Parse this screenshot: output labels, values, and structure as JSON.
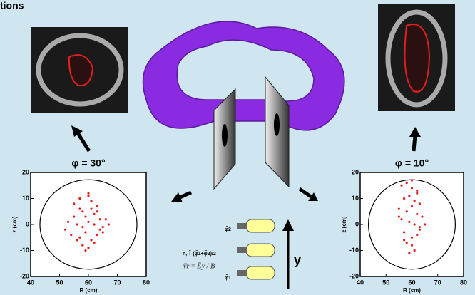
{
  "title": "tions",
  "panels": [
    {
      "label": "φ = 30°",
      "xlabel": "R (cm)",
      "ylabel": "z (cm)",
      "color": "#e02020",
      "xlim": [
        40,
        80
      ],
      "ylim": [
        -20,
        20
      ],
      "xticks": [
        40,
        50,
        60,
        70,
        80
      ],
      "yticks": [
        -20,
        -10,
        0,
        10,
        20
      ],
      "x": [
        55,
        57,
        58,
        59,
        60,
        61,
        62,
        63,
        64,
        56,
        58,
        60,
        62,
        64,
        66,
        54,
        57,
        59,
        61,
        63,
        65,
        52,
        55,
        58,
        60,
        62,
        60,
        59,
        61,
        57,
        63,
        65,
        67,
        53,
        56
      ],
      "y": [
        8,
        10,
        5,
        3,
        11,
        6,
        4,
        7,
        2,
        0,
        -1,
        1,
        0,
        -2,
        2,
        -4,
        -5,
        -3,
        -6,
        -4,
        -1,
        -2,
        3,
        -8,
        -9,
        -7,
        12,
        -10,
        9,
        6,
        5,
        -3,
        0,
        1,
        -6
      ]
    },
    {
      "label": "φ = 10°",
      "xlabel": "R (cm)",
      "ylabel": "z (cm)",
      "color": "#e02020",
      "xlim": [
        40,
        80
      ],
      "ylim": [
        -20,
        20
      ],
      "xticks": [
        40,
        50,
        60,
        70,
        80
      ],
      "yticks": [
        -20,
        -10,
        0,
        10,
        20
      ],
      "x": [
        56,
        58,
        60,
        62,
        57,
        59,
        61,
        63,
        55,
        58,
        60,
        62,
        64,
        56,
        59,
        61,
        63,
        57,
        60,
        62,
        58,
        60,
        61,
        59,
        57,
        63,
        55,
        65,
        60,
        62
      ],
      "y": [
        15,
        16,
        14,
        12,
        10,
        11,
        9,
        8,
        6,
        5,
        7,
        4,
        3,
        2,
        1,
        0,
        -2,
        -3,
        -5,
        -4,
        -7,
        -8,
        -10,
        -11,
        -6,
        -1,
        3,
        0,
        17,
        13
      ]
    }
  ],
  "probes": [
    "φ̃2",
    "n, T̃  (φ̃1+φ̃2)/2",
    "φ̃1"
  ],
  "formula": "ṽr = Ẽy / B",
  "axis_label": "y"
}
